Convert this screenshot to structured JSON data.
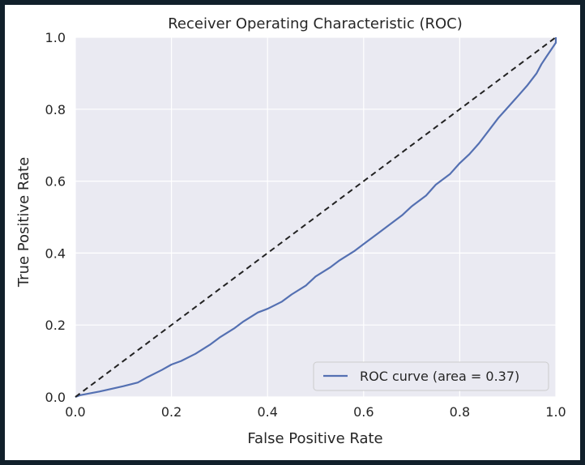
{
  "chart_data": {
    "type": "line",
    "title": "Receiver Operating Characteristic (ROC)",
    "xlabel": "False Positive Rate",
    "ylabel": "True Positive Rate",
    "xlim": [
      0.0,
      1.0
    ],
    "ylim": [
      0.0,
      1.0
    ],
    "xticks": [
      "0.0",
      "0.2",
      "0.4",
      "0.6",
      "0.8",
      "1.0"
    ],
    "yticks": [
      "0.0",
      "0.2",
      "0.4",
      "0.6",
      "0.8",
      "1.0"
    ],
    "grid": true,
    "legend_position": "lower-right",
    "series": [
      {
        "name": "ROC curve (area = 0.37)",
        "color": "#5470b2",
        "style": "solid",
        "x": [
          0.0,
          0.01,
          0.05,
          0.1,
          0.13,
          0.15,
          0.18,
          0.2,
          0.22,
          0.25,
          0.28,
          0.3,
          0.33,
          0.35,
          0.38,
          0.4,
          0.43,
          0.45,
          0.48,
          0.5,
          0.53,
          0.55,
          0.58,
          0.6,
          0.63,
          0.65,
          0.68,
          0.7,
          0.73,
          0.75,
          0.78,
          0.8,
          0.82,
          0.84,
          0.86,
          0.88,
          0.9,
          0.92,
          0.94,
          0.96,
          0.97,
          0.98,
          0.99,
          1.0,
          1.0
        ],
        "y": [
          0.0,
          0.005,
          0.015,
          0.03,
          0.04,
          0.055,
          0.075,
          0.09,
          0.1,
          0.12,
          0.145,
          0.165,
          0.19,
          0.21,
          0.235,
          0.245,
          0.265,
          0.285,
          0.31,
          0.335,
          0.36,
          0.38,
          0.405,
          0.425,
          0.455,
          0.475,
          0.505,
          0.53,
          0.56,
          0.59,
          0.62,
          0.65,
          0.675,
          0.705,
          0.74,
          0.775,
          0.805,
          0.835,
          0.865,
          0.9,
          0.925,
          0.945,
          0.965,
          0.985,
          1.0
        ]
      },
      {
        "name": "",
        "color": "#222222",
        "style": "dashed",
        "x": [
          0.0,
          1.0
        ],
        "y": [
          0.0,
          1.0
        ]
      }
    ]
  }
}
